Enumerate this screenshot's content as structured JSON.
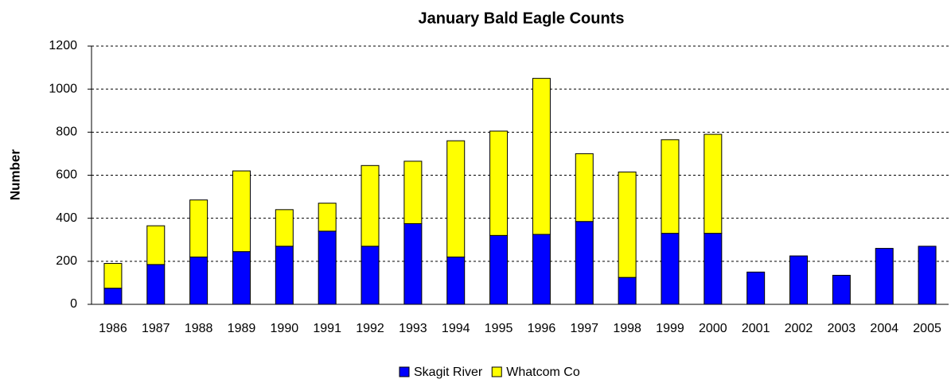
{
  "chart_data": {
    "type": "stacked_bar",
    "title": "January Bald Eagle Counts",
    "y_label": "Number",
    "categories": [
      "1986",
      "1987",
      "1988",
      "1989",
      "1990",
      "1991",
      "1992",
      "1993",
      "1994",
      "1995",
      "1996",
      "1997",
      "1998",
      "1999",
      "2000",
      "2001",
      "2002",
      "2003",
      "2004",
      "2005"
    ],
    "series": [
      {
        "name": "Skagit River",
        "color": "#0000ff",
        "values": [
          75,
          185,
          220,
          245,
          270,
          340,
          270,
          375,
          220,
          320,
          325,
          385,
          125,
          330,
          330,
          150,
          225,
          135,
          260,
          270
        ]
      },
      {
        "name": "Whatcom Co",
        "color": "#ffff00",
        "values": [
          115,
          180,
          265,
          375,
          170,
          130,
          375,
          290,
          540,
          485,
          725,
          315,
          490,
          435,
          460,
          null,
          null,
          null,
          null,
          null
        ]
      }
    ],
    "ylim": [
      0,
      1200
    ],
    "yticks": [
      0,
      200,
      400,
      600,
      800,
      1000,
      1200
    ],
    "grid": true,
    "legend": "bottom"
  }
}
